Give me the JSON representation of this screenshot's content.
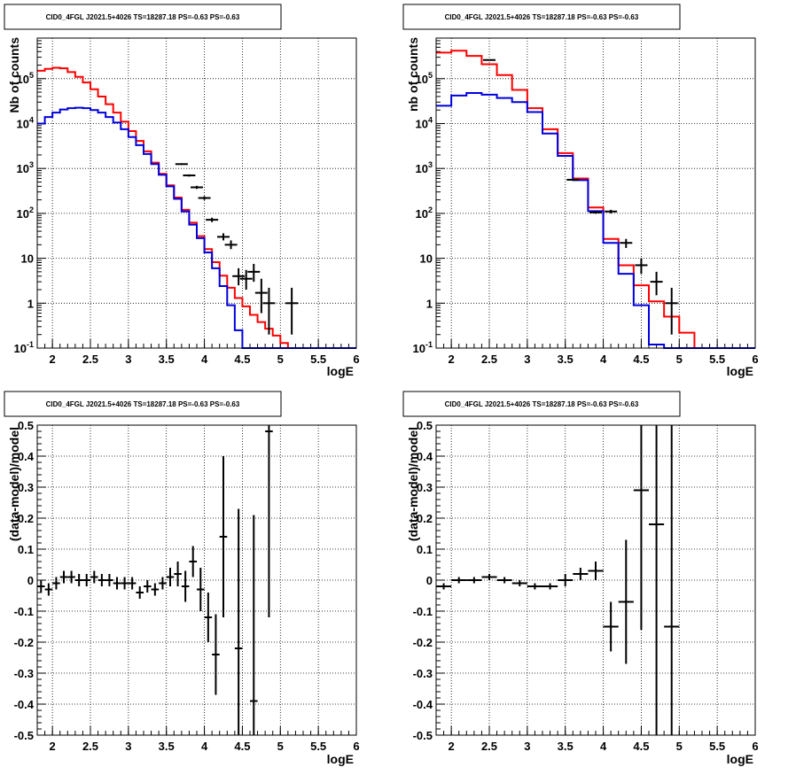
{
  "chart_data": [
    {
      "panel": "top-left",
      "type": "histogram",
      "title": "CID0_4FGL J2021.5+4026 TS=18287.18 PS=-0.63 PS=-0.63",
      "xlabel": "logE",
      "ylabel": "Nb of counts",
      "yscale": "log",
      "xlim": [
        1.8,
        6.0
      ],
      "ylim": [
        0.1,
        800000
      ],
      "xticks": [
        "2",
        "2.5",
        "3",
        "3.5",
        "4",
        "4.5",
        "5",
        "5.5",
        "6"
      ],
      "yticks": [
        "10^-1",
        "1",
        "10",
        "10^2",
        "10^3",
        "10^4",
        "10^5"
      ],
      "grid": true,
      "bin_edges": [
        1.8,
        1.9,
        2.0,
        2.1,
        2.2,
        2.3,
        2.4,
        2.5,
        2.6,
        2.7,
        2.8,
        2.9,
        3.0,
        3.1,
        3.2,
        3.3,
        3.4,
        3.5,
        3.6,
        3.7,
        3.8,
        3.9,
        4.0,
        4.1,
        4.2,
        4.3,
        4.4,
        4.5,
        4.6,
        4.7,
        4.8,
        4.9,
        5.0,
        5.1,
        5.2,
        5.3,
        5.4,
        5.5,
        5.6,
        5.7,
        5.8,
        5.9,
        6.0
      ],
      "series": [
        {
          "color": "#ff0000",
          "style": "step",
          "values": [
            150000,
            165000,
            175000,
            170000,
            140000,
            110000,
            82000,
            58000,
            40000,
            27000,
            17500,
            11000,
            6800,
            4100,
            2400,
            1350,
            760,
            420,
            225,
            120,
            62,
            31,
            16,
            8.2,
            4.1,
            2.2,
            1.3,
            0.85,
            0.55,
            0.38,
            0.27,
            0.19,
            0.13,
            0.095,
            0.07,
            0.07,
            0.07,
            0.07,
            0.07,
            0.07,
            0.07,
            0.07
          ]
        },
        {
          "color": "#0000dd",
          "style": "step",
          "values": [
            10000,
            14000,
            17500,
            20500,
            22000,
            22500,
            22000,
            20000,
            17500,
            14000,
            10500,
            7500,
            5000,
            3300,
            2100,
            1250,
            720,
            400,
            210,
            110,
            56,
            28,
            13.5,
            6,
            2.4,
            0.9,
            0.25,
            0.05,
            0.05,
            0.05,
            0.05,
            0.05,
            0.05,
            0.05,
            0.05,
            0.05,
            0.05,
            0.05,
            0.05,
            0.05,
            0.05,
            0.05
          ]
        },
        {
          "color": "#000000",
          "style": "points",
          "x": [
            3.7,
            3.8,
            3.9,
            4.0,
            4.1,
            4.25,
            4.35,
            4.45,
            4.55,
            4.65,
            4.75,
            4.85,
            5.15
          ],
          "y": [
            1250,
            700,
            380,
            220,
            72,
            30,
            20,
            4,
            3.5,
            5,
            1.7,
            1,
            1
          ],
          "yerr_lo": [
            1200,
            660,
            350,
            200,
            64,
            25,
            16,
            2.5,
            2,
            3,
            0.6,
            0.2,
            0.2
          ],
          "yerr_hi": [
            1300,
            740,
            410,
            240,
            80,
            36,
            25,
            6,
            5.5,
            7.5,
            3.5,
            2.2,
            2.2
          ]
        }
      ]
    },
    {
      "panel": "top-right",
      "type": "histogram",
      "title": "CID0_4FGL J2021.5+4026 TS=18287.18 PS=-0.63 PS=-0.63",
      "xlabel": "logE",
      "ylabel": "nb of counts",
      "yscale": "log",
      "xlim": [
        1.8,
        6.0
      ],
      "ylim": [
        0.1,
        800000
      ],
      "xticks": [
        "2",
        "2.5",
        "3",
        "3.5",
        "4",
        "4.5",
        "5",
        "5.5",
        "6"
      ],
      "yticks": [
        "10^-1",
        "1",
        "10",
        "10^2",
        "10^3",
        "10^4",
        "10^5"
      ],
      "grid": true,
      "bin_edges": [
        1.8,
        2.0,
        2.2,
        2.4,
        2.6,
        2.8,
        3.0,
        3.2,
        3.4,
        3.6,
        3.8,
        4.0,
        4.2,
        4.4,
        4.6,
        4.8,
        5.0,
        5.2,
        5.4,
        5.6,
        5.8,
        6.0
      ],
      "series": [
        {
          "color": "#ff0000",
          "style": "step",
          "values": [
            380000,
            420000,
            320000,
            210000,
            120000,
            56000,
            22000,
            7500,
            2200,
            600,
            135,
            27,
            7,
            2.5,
            1.1,
            0.5,
            0.22,
            0.1,
            0.07,
            0.07,
            0.07
          ]
        },
        {
          "color": "#0000dd",
          "style": "step",
          "values": [
            25000,
            42000,
            48000,
            44000,
            37000,
            30000,
            18000,
            6000,
            1900,
            550,
            112,
            22,
            4.5,
            0.9,
            0.12,
            0.1,
            0.05,
            0.05,
            0.05,
            0.05,
            0.05
          ]
        },
        {
          "color": "#000000",
          "style": "points",
          "x": [
            2.5,
            3.6,
            3.9,
            4.1,
            4.3,
            4.5,
            4.7,
            4.9
          ],
          "y": [
            260000,
            560,
            105,
            110,
            22,
            7,
            3,
            1
          ],
          "yerr_lo": [
            255000,
            540,
            98,
            100,
            17,
            4.5,
            1.5,
            0.2
          ],
          "yerr_hi": [
            265000,
            580,
            112,
            120,
            27,
            10,
            5,
            2.2
          ]
        }
      ]
    },
    {
      "panel": "bottom-left",
      "type": "scatter",
      "title": "CID0_4FGL J2021.5+4026 TS=18287.18 PS=-0.63 PS=-0.63",
      "xlabel": "logE",
      "ylabel": "(data-model)/model",
      "xlim": [
        1.8,
        6.0
      ],
      "ylim": [
        -0.5,
        0.5
      ],
      "xticks": [
        "2",
        "2.5",
        "3",
        "3.5",
        "4",
        "4.5",
        "5",
        "5.5",
        "6"
      ],
      "yticks": [
        "-0.5",
        "-0.4",
        "-0.3",
        "-0.2",
        "-0.1",
        "0",
        "0.1",
        "0.2",
        "0.3",
        "0.4",
        "0.5"
      ],
      "grid": true,
      "x": [
        1.85,
        1.95,
        2.05,
        2.15,
        2.25,
        2.35,
        2.45,
        2.55,
        2.65,
        2.75,
        2.85,
        2.95,
        3.05,
        3.15,
        3.25,
        3.35,
        3.45,
        3.55,
        3.65,
        3.75,
        3.85,
        3.95,
        4.05,
        4.15,
        4.25,
        4.45,
        4.65,
        4.85
      ],
      "y": [
        -0.02,
        -0.03,
        -0.01,
        0.01,
        0.01,
        0.0,
        0.0,
        0.01,
        0.0,
        0.0,
        -0.01,
        -0.01,
        -0.01,
        -0.04,
        -0.02,
        -0.03,
        -0.01,
        0.01,
        0.02,
        -0.02,
        0.06,
        -0.03,
        -0.12,
        -0.24,
        0.14,
        -0.22,
        -0.39,
        0.48
      ],
      "yerr": [
        0.02,
        0.02,
        0.02,
        0.02,
        0.02,
        0.02,
        0.02,
        0.02,
        0.02,
        0.02,
        0.02,
        0.02,
        0.02,
        0.02,
        0.02,
        0.02,
        0.02,
        0.03,
        0.04,
        0.05,
        0.05,
        0.07,
        0.08,
        0.13,
        0.26,
        0.45,
        0.6,
        0.6
      ]
    },
    {
      "panel": "bottom-right",
      "type": "scatter",
      "title": "CID0_4FGL J2021.5+4026 TS=18287.18 PS=-0.63 PS=-0.63",
      "xlabel": "logE",
      "ylabel": "(data-model)/model",
      "xlim": [
        1.8,
        6.0
      ],
      "ylim": [
        -0.5,
        0.5
      ],
      "xticks": [
        "2",
        "2.5",
        "3",
        "3.5",
        "4",
        "4.5",
        "5",
        "5.5",
        "6"
      ],
      "yticks": [
        "-0.5",
        "-0.4",
        "-0.3",
        "-0.2",
        "-0.1",
        "0",
        "0.1",
        "0.2",
        "0.3",
        "0.4",
        "0.5"
      ],
      "grid": true,
      "x": [
        1.9,
        2.1,
        2.3,
        2.5,
        2.7,
        2.9,
        3.1,
        3.3,
        3.5,
        3.7,
        3.9,
        4.1,
        4.3,
        4.5,
        4.7,
        4.9
      ],
      "y": [
        -0.02,
        0.0,
        0.0,
        0.01,
        0.0,
        -0.01,
        -0.02,
        -0.02,
        0.0,
        0.02,
        0.03,
        -0.15,
        -0.07,
        0.29,
        0.18,
        -0.15
      ],
      "yerr": [
        0.01,
        0.01,
        0.01,
        0.01,
        0.01,
        0.01,
        0.01,
        0.01,
        0.02,
        0.02,
        0.03,
        0.08,
        0.2,
        0.45,
        0.7,
        0.7
      ]
    }
  ]
}
